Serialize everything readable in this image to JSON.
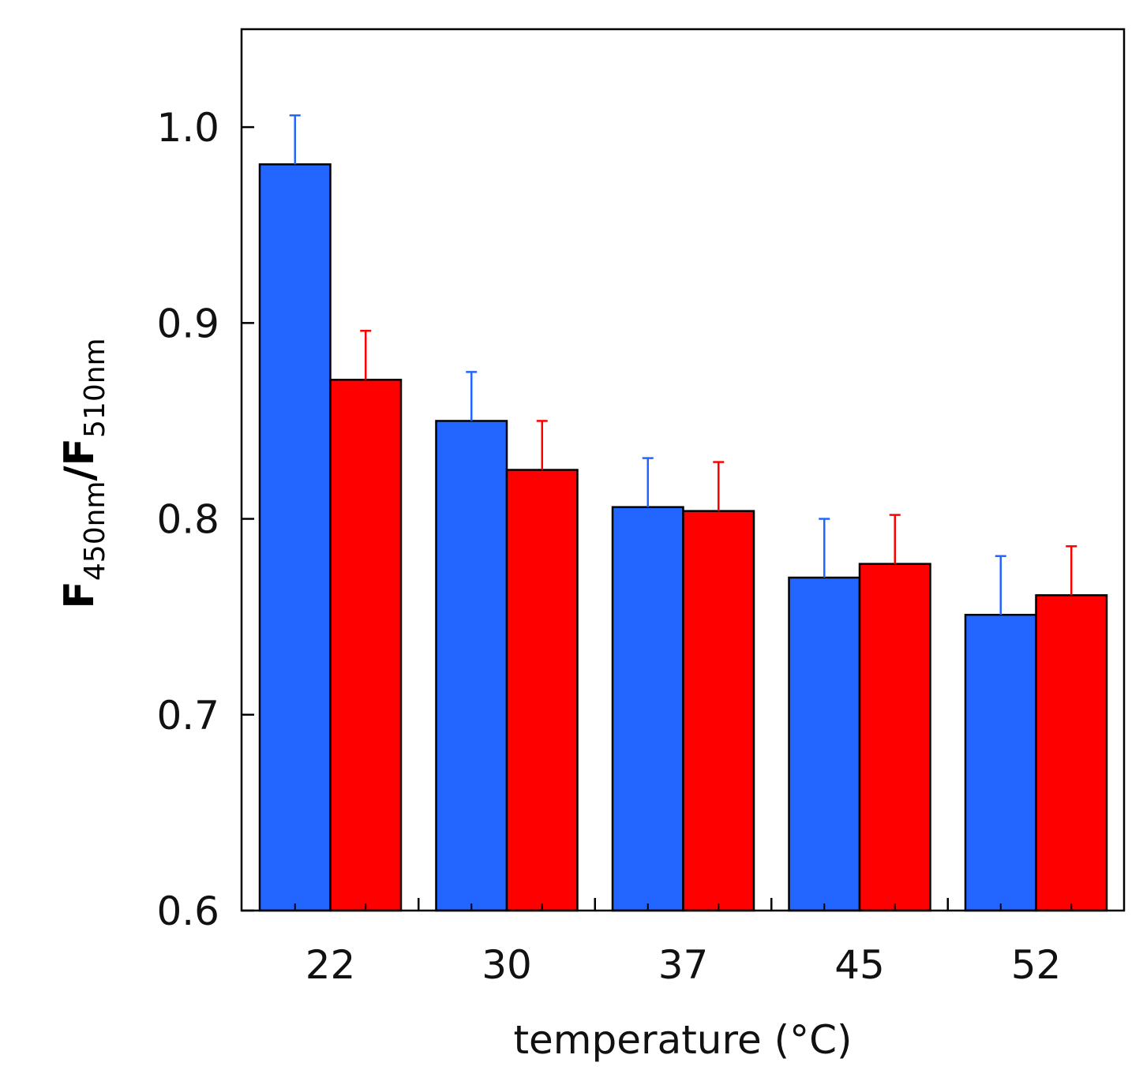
{
  "chart_data": {
    "type": "bar",
    "title": "",
    "xlabel": "temperature (°C)",
    "ylabel": {
      "parts": [
        {
          "text": "F",
          "role": "main"
        },
        {
          "text": "450nm",
          "role": "sub"
        },
        {
          "text": "/F",
          "role": "main"
        },
        {
          "text": "510nm",
          "role": "sub"
        }
      ]
    },
    "categories": [
      "22",
      "30",
      "37",
      "45",
      "52"
    ],
    "ylim": [
      0.6,
      1.05
    ],
    "yticks": [
      {
        "value": 0.6,
        "label": "0.6"
      },
      {
        "value": 0.7,
        "label": "0.7"
      },
      {
        "value": 0.8,
        "label": "0.8"
      },
      {
        "value": 0.9,
        "label": "0.9"
      },
      {
        "value": 1.0,
        "label": "1.0"
      }
    ],
    "grid": false,
    "series": [
      {
        "name": "blue series",
        "color": "#2266ff",
        "values": [
          0.981,
          0.85,
          0.806,
          0.77,
          0.751
        ],
        "errors": [
          0.025,
          0.025,
          0.025,
          0.03,
          0.03
        ]
      },
      {
        "name": "red series",
        "color": "#ff0000",
        "values": [
          0.871,
          0.825,
          0.804,
          0.777,
          0.761
        ],
        "errors": [
          0.025,
          0.025,
          0.025,
          0.025,
          0.025
        ]
      }
    ]
  }
}
